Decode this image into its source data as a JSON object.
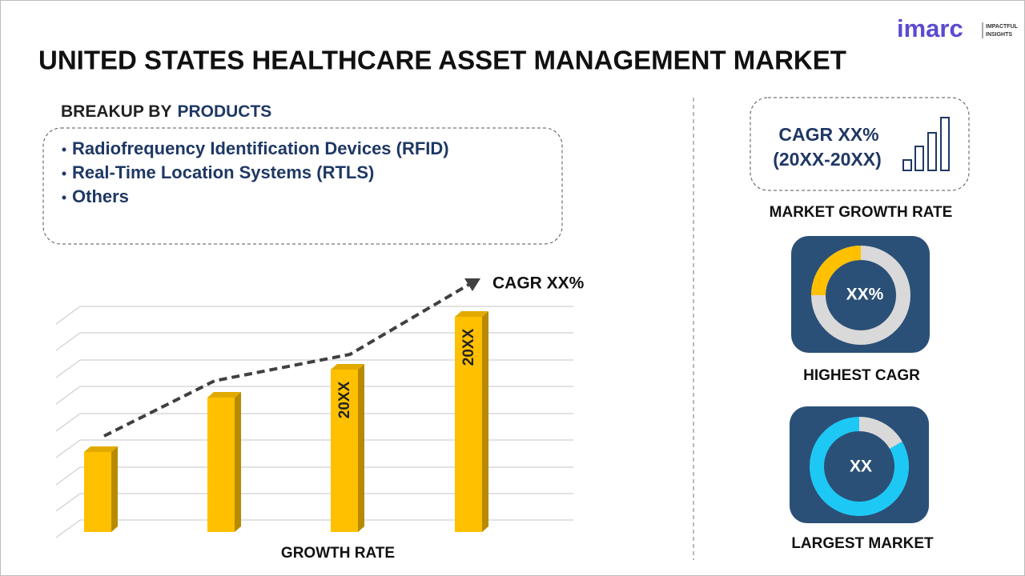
{
  "header": {
    "title": "UNITED STATES HEALTHCARE ASSET MANAGEMENT MARKET",
    "logo": "imarc",
    "logo_tagline": [
      "IMPACTFUL",
      "INSIGHTS"
    ]
  },
  "breakup": {
    "label": "BREAKUP BY",
    "highlight": "PRODUCTS",
    "items": [
      "Radiofrequency Identification Devices (RFID)",
      "Real-Time Location Systems (RTLS)",
      "Others"
    ]
  },
  "growth_chart": {
    "trend_label": "CAGR XX%",
    "bar_labels": [
      "20XX",
      "20XX"
    ],
    "axis_label": "GROWTH RATE"
  },
  "sidebar": {
    "cagr": [
      "CAGR XX%",
      "(20XX-20XX)"
    ],
    "cagr_caption": "MARKET GROWTH RATE",
    "highest": {
      "value": "XX%",
      "caption": "HIGHEST CAGR"
    },
    "largest": {
      "value": "XX",
      "caption": "LARGEST MARKET"
    }
  }
}
